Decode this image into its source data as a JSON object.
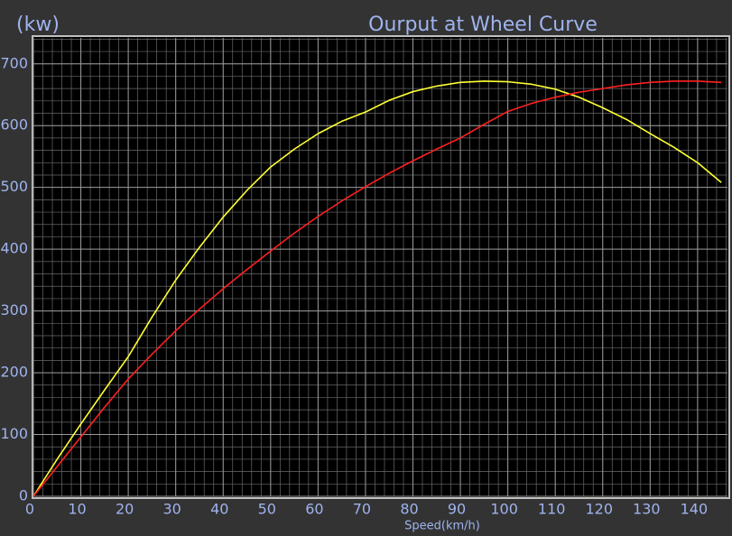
{
  "chart_data": {
    "type": "line",
    "title": "Ourput at Wheel Curve",
    "y_label": "(kw)",
    "x_label": "Speed(km/h)",
    "xlim": [
      0,
      146.3
    ],
    "ylim": [
      0,
      742
    ],
    "xticks": [
      0,
      10,
      20,
      30,
      40,
      50,
      60,
      70,
      80,
      90,
      100,
      110,
      120,
      130,
      140
    ],
    "yticks": [
      0,
      100,
      200,
      300,
      400,
      500,
      600,
      700
    ],
    "grid": true,
    "x": [
      0,
      5,
      10,
      15,
      20,
      25,
      30,
      35,
      40,
      45,
      50,
      55,
      60,
      65,
      70,
      75,
      80,
      85,
      90,
      95,
      100,
      105,
      110,
      115,
      120,
      125,
      130,
      135,
      140,
      145
    ],
    "series": [
      {
        "color": "#ffff33",
        "values": [
          0,
          60,
          117,
          172,
          226,
          290,
          350,
          403,
          452,
          495,
          533,
          562,
          587,
          607,
          622,
          641,
          655,
          664,
          670,
          672,
          671,
          667,
          659,
          646,
          629,
          610,
          587,
          565,
          540,
          508
        ]
      },
      {
        "color": "#ff2020",
        "values": [
          0,
          48,
          96,
          144,
          190,
          230,
          268,
          303,
          336,
          367,
          397,
          426,
          453,
          478,
          501,
          523,
          543,
          562,
          580,
          602,
          623,
          636,
          646,
          654,
          660,
          666,
          670,
          672,
          672,
          670
        ]
      }
    ]
  }
}
